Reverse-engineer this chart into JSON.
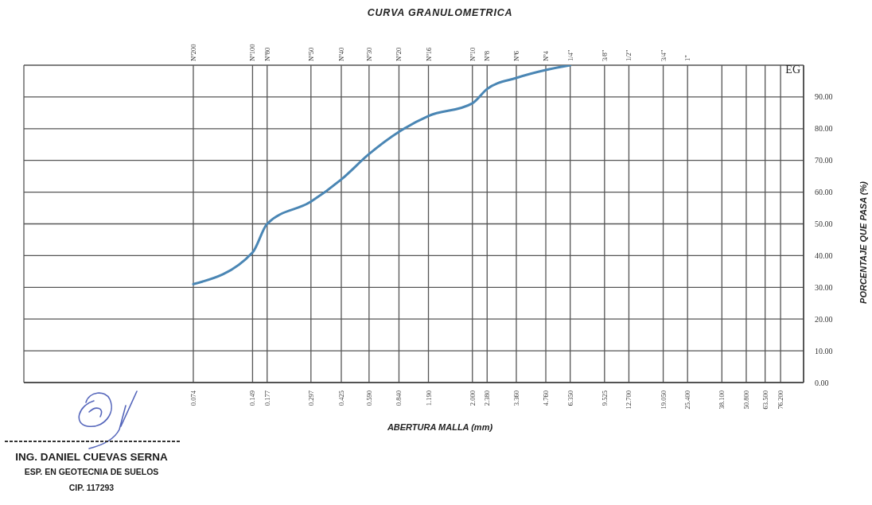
{
  "chart_data": {
    "type": "line",
    "title": "CURVA GRANULOMETRICA",
    "xlabel": "ABERTURA MALLA (mm)",
    "ylabel": "PORCENTAJE QUE PASA (%)",
    "x": [
      0.074,
      0.149,
      0.177,
      0.297,
      0.425,
      0.59,
      0.84,
      1.19,
      2.0,
      2.38,
      3.36,
      4.76,
      6.35
    ],
    "series": [
      {
        "color": "#4a86b4",
        "values": [
          31,
          41,
          50,
          57,
          64,
          72,
          79,
          84,
          88,
          92.5,
          96,
          98.5,
          100
        ]
      }
    ],
    "log": "x",
    "xlim": [
      0.01,
      100
    ],
    "xticks": [
      {
        "value": 0.074,
        "label": "0.074"
      },
      {
        "value": 0.149,
        "label": "0.149"
      },
      {
        "value": 0.177,
        "label": "0.177"
      },
      {
        "value": 0.297,
        "label": "0.297"
      },
      {
        "value": 0.425,
        "label": "0.425"
      },
      {
        "value": 0.59,
        "label": "0.590"
      },
      {
        "value": 0.84,
        "label": "0.840"
      },
      {
        "value": 1.19,
        "label": "1.190"
      },
      {
        "value": 2.0,
        "label": "2.000"
      },
      {
        "value": 2.38,
        "label": "2.380"
      },
      {
        "value": 3.36,
        "label": "3.360"
      },
      {
        "value": 4.76,
        "label": "4.760"
      },
      {
        "value": 6.35,
        "label": "6.350"
      },
      {
        "value": 9.525,
        "label": "9.525"
      },
      {
        "value": 12.7,
        "label": "12.700"
      },
      {
        "value": 19.05,
        "label": "19.050"
      },
      {
        "value": 25.4,
        "label": "25.400"
      },
      {
        "value": 38.1,
        "label": "38.100"
      },
      {
        "value": 50.8,
        "label": "50.800"
      },
      {
        "value": 63.5,
        "label": "63.500"
      },
      {
        "value": 76.2,
        "label": "76.200"
      }
    ],
    "ylim": [
      0,
      100
    ],
    "yticks": [
      {
        "value": 0,
        "label": "0.00"
      },
      {
        "value": 10,
        "label": "10.00"
      },
      {
        "value": 20,
        "label": "20.00"
      },
      {
        "value": 30,
        "label": "30.00"
      },
      {
        "value": 40,
        "label": "40.00"
      },
      {
        "value": 50,
        "label": "50.00"
      },
      {
        "value": 60,
        "label": "60.00"
      },
      {
        "value": 70,
        "label": "70.00"
      },
      {
        "value": 80,
        "label": "80.00"
      },
      {
        "value": 90,
        "label": "90.00"
      },
      {
        "value": 100,
        "label": null
      }
    ],
    "grid": true,
    "marker": "none",
    "line_style": "solid",
    "annotations": [
      "EG",
      "ING. DANIEL CUEVAS SERNA",
      "ESP. EN GEOTECNIA DE SUELOS",
      "CIP. 117293",
      "Nº200",
      "Nº100",
      "Nº80",
      "Nº50",
      "Nº40",
      "Nº30",
      "Nº20",
      "Nº16",
      "Nº10",
      "Nº8",
      "Nº6",
      "Nº4",
      "1/4\"",
      "3/8\"",
      "1/2\"",
      "3/4\"",
      "1\""
    ]
  }
}
